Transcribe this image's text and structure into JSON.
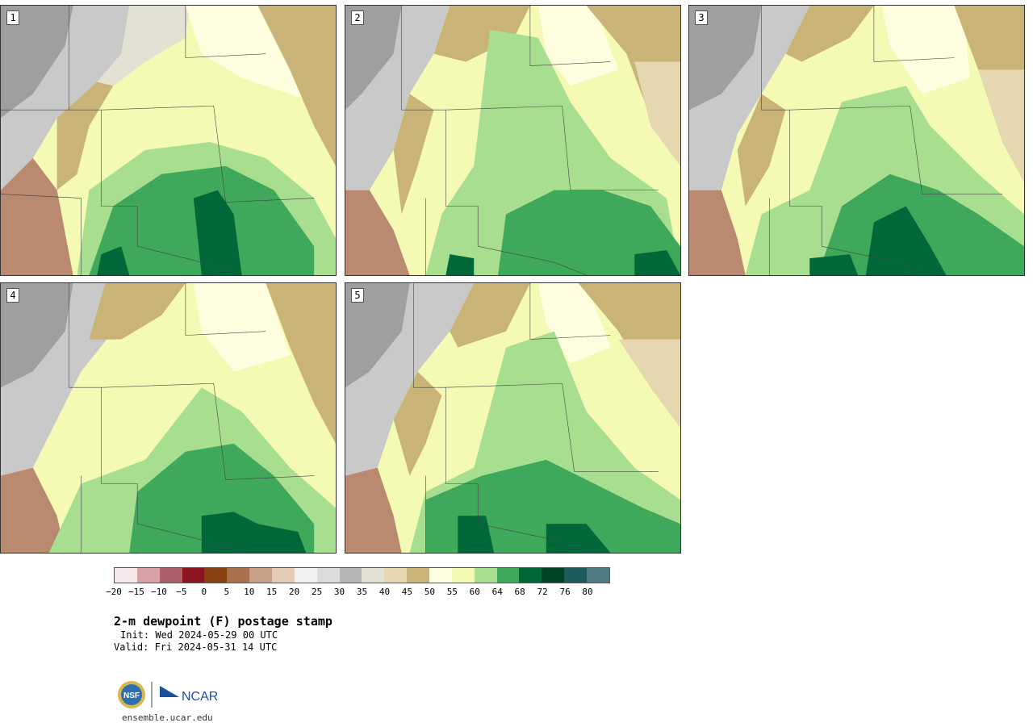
{
  "panels": [
    {
      "label": "1"
    },
    {
      "label": "2"
    },
    {
      "label": "3"
    },
    {
      "label": "4"
    },
    {
      "label": "5"
    }
  ],
  "colorbar": {
    "colors": [
      "#f6e8ea",
      "#d9a0a6",
      "#b06068",
      "#8c1520",
      "#8a4110",
      "#a8704c",
      "#c8a088",
      "#e4cbb8",
      "#f2f2f2",
      "#dcdcdc",
      "#b5b5b5",
      "#e3e1d3",
      "#e5d7b0",
      "#cab377",
      "#fffde0",
      "#f4f9b4",
      "#a8de8f",
      "#3fa85a",
      "#006838",
      "#00442a",
      "#1d5c5a",
      "#4e7c80"
    ],
    "ticks": [
      "−20",
      "−15",
      "−10",
      "−5",
      "0",
      "5",
      "10",
      "15",
      "20",
      "25",
      "30",
      "35",
      "40",
      "45",
      "50",
      "55",
      "60",
      "64",
      "68",
      "72",
      "76",
      "80"
    ]
  },
  "title": "2-m dewpoint (F) postage stamp",
  "init": "Init: Wed 2024-05-29 00 UTC",
  "valid": "Valid: Fri 2024-05-31 14 UTC",
  "logo": {
    "left": "NSF",
    "right": "NCAR"
  },
  "url": "ensemble.ucar.edu"
}
